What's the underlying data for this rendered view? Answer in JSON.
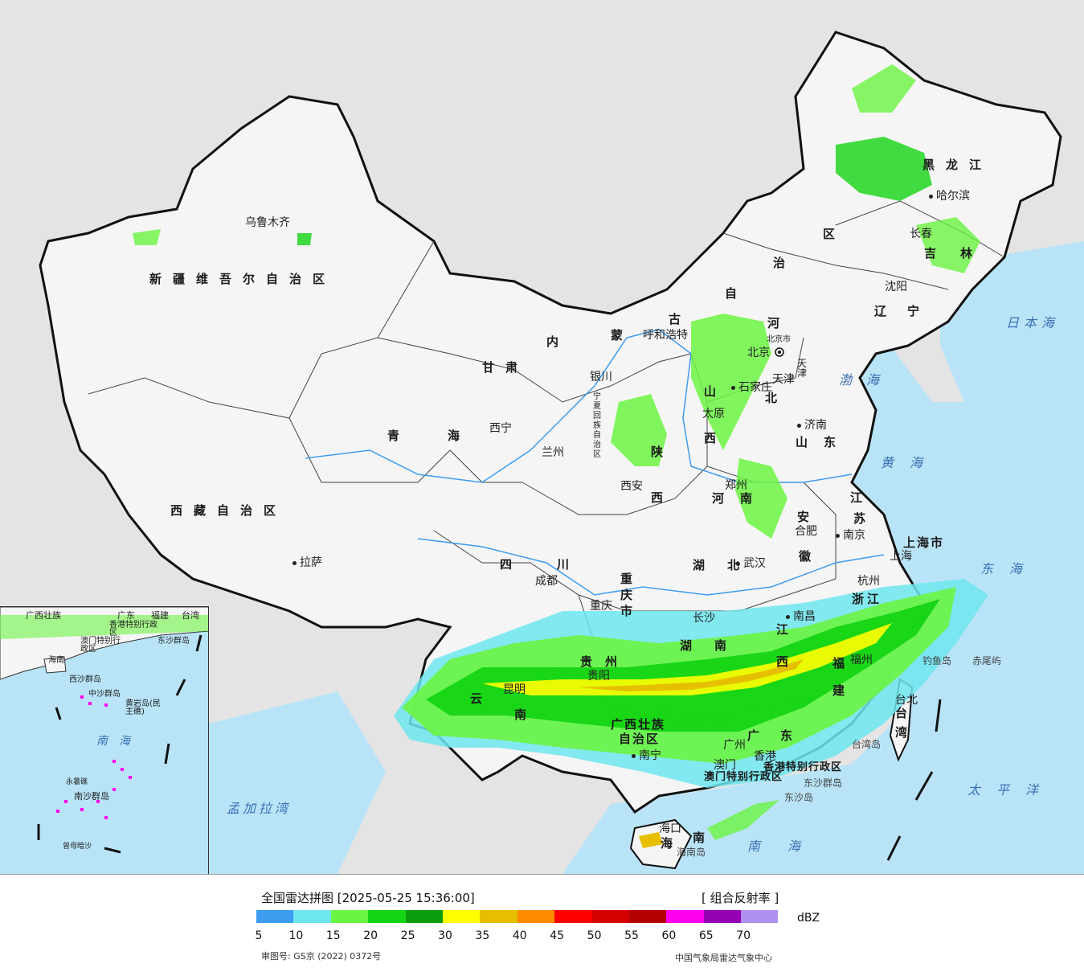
{
  "legend": {
    "title": "全国雷达拼图 [2025-05-25 15:36:00]",
    "product": "[ 组合反射率 ]",
    "unit": "dBZ",
    "colors": [
      "#3d9cf0",
      "#6ee6ee",
      "#6cf442",
      "#14d414",
      "#0a9c0a",
      "#ffff00",
      "#e6c000",
      "#ff8c00",
      "#ff0000",
      "#d40000",
      "#b40000",
      "#ff00f0",
      "#9400b4",
      "#b090f0"
    ],
    "ticks": [
      "5",
      "10",
      "15",
      "20",
      "25",
      "30",
      "35",
      "40",
      "45",
      "50",
      "55",
      "60",
      "65",
      "70"
    ],
    "approval": "审图号: GS京 (2022) 0372号",
    "source": "中国气象局雷达气象中心"
  },
  "provinces": {
    "xinjiang": "新疆维吾尔自治区",
    "xizang": "西藏自治区",
    "qinghai": "青海",
    "gansu": "甘肃",
    "neimenggu_1": "内",
    "neimenggu_2": "蒙",
    "neimenggu_3": "古",
    "neimenggu_4": "自",
    "neimenggu_5": "治",
    "neimenggu_6": "区",
    "heilongjiang": "黑龙江",
    "jilin": "吉林",
    "liaoning": "辽宁",
    "hebei_1": "河",
    "hebei_2": "北",
    "shanxi_1": "山",
    "shanxi_2": "西",
    "shandong": "山东",
    "henan": "河南",
    "shaanxi_1": "陕",
    "shaanxi_2": "西",
    "ningxia": "宁夏回族自治区",
    "sichuan": "四川",
    "chongqing": "重庆市",
    "hubei": "湖北",
    "hunan": "湖南",
    "jiangxi_1": "江",
    "jiangxi_2": "西",
    "anhui_1": "安",
    "anhui_2": "徽",
    "jiangsu_1": "江",
    "jiangsu_2": "苏",
    "zhejiang": "浙江",
    "fujian_1": "福",
    "fujian_2": "建",
    "guizhou": "贵州",
    "yunnan_1": "云",
    "yunnan_2": "南",
    "guangxi_1": "广西壮族",
    "guangxi_2": "自治区",
    "guangdong": "广东",
    "hainan_1": "海",
    "hainan_2": "南",
    "taiwan_1": "台",
    "taiwan_2": "湾",
    "shanghai": "上海市",
    "beijing": "北京市",
    "tianjin": "天津",
    "hongkong": "香港特别行政区",
    "macau": "澳门特别行政区"
  },
  "cities": {
    "urumqi": "乌鲁木齐",
    "lhasa": "拉萨",
    "xining": "西宁",
    "lanzhou": "兰州",
    "yinchuan": "银川",
    "hohhot": "呼和浩特",
    "beijing": "北京",
    "tianjin": "天津",
    "shijiazhuang": "石家庄",
    "taiyuan": "太原",
    "jinan": "济南",
    "zhengzhou": "郑州",
    "xian": "西安",
    "chengdu": "成都",
    "chongqing": "重庆",
    "wuhan": "武汉",
    "hefei": "合肥",
    "nanjing": "南京",
    "shanghai": "上海",
    "hangzhou": "杭州",
    "nanchang": "南昌",
    "changsha": "长沙",
    "guiyang": "贵阳",
    "kunming": "昆明",
    "nanning": "南宁",
    "guangzhou": "广州",
    "macau": "澳门",
    "hongkong": "香港",
    "fuzhou": "福州",
    "taibei": "台北",
    "haikou": "海口",
    "harbin": "哈尔滨",
    "changchun": "长春",
    "shenyang": "沈阳"
  },
  "seas": {
    "japan_sea": "日本海",
    "bohai": "渤海",
    "yellow_sea": "黄海",
    "east_sea": "东海",
    "pacific": "太平洋",
    "south_sea": "南海",
    "bengal": "孟加拉湾"
  },
  "islands": {
    "diaoyu": "钓鱼岛",
    "chiwei": "赤尾屿",
    "taiwan_island": "台湾岛",
    "dongsha_islands": "东沙群岛",
    "dongsha_island": "东沙岛",
    "hainan_island": "海南岛"
  },
  "inset": {
    "guangxi": "广西壮族",
    "guangdong": "广东",
    "fujian": "福建",
    "taiwan": "台湾",
    "hongkong": "香港特别行政区",
    "macau": "澳门特别行政区",
    "dongsha": "东沙群岛",
    "hainan": "海南",
    "xisha": "西沙群岛",
    "zhongsha": "中沙群岛",
    "huangyan": "黄岩岛(民主礁)",
    "sea": "南海",
    "yongshu": "永暑礁",
    "nansha": "南沙群岛",
    "zengmu": "曾母暗沙"
  }
}
